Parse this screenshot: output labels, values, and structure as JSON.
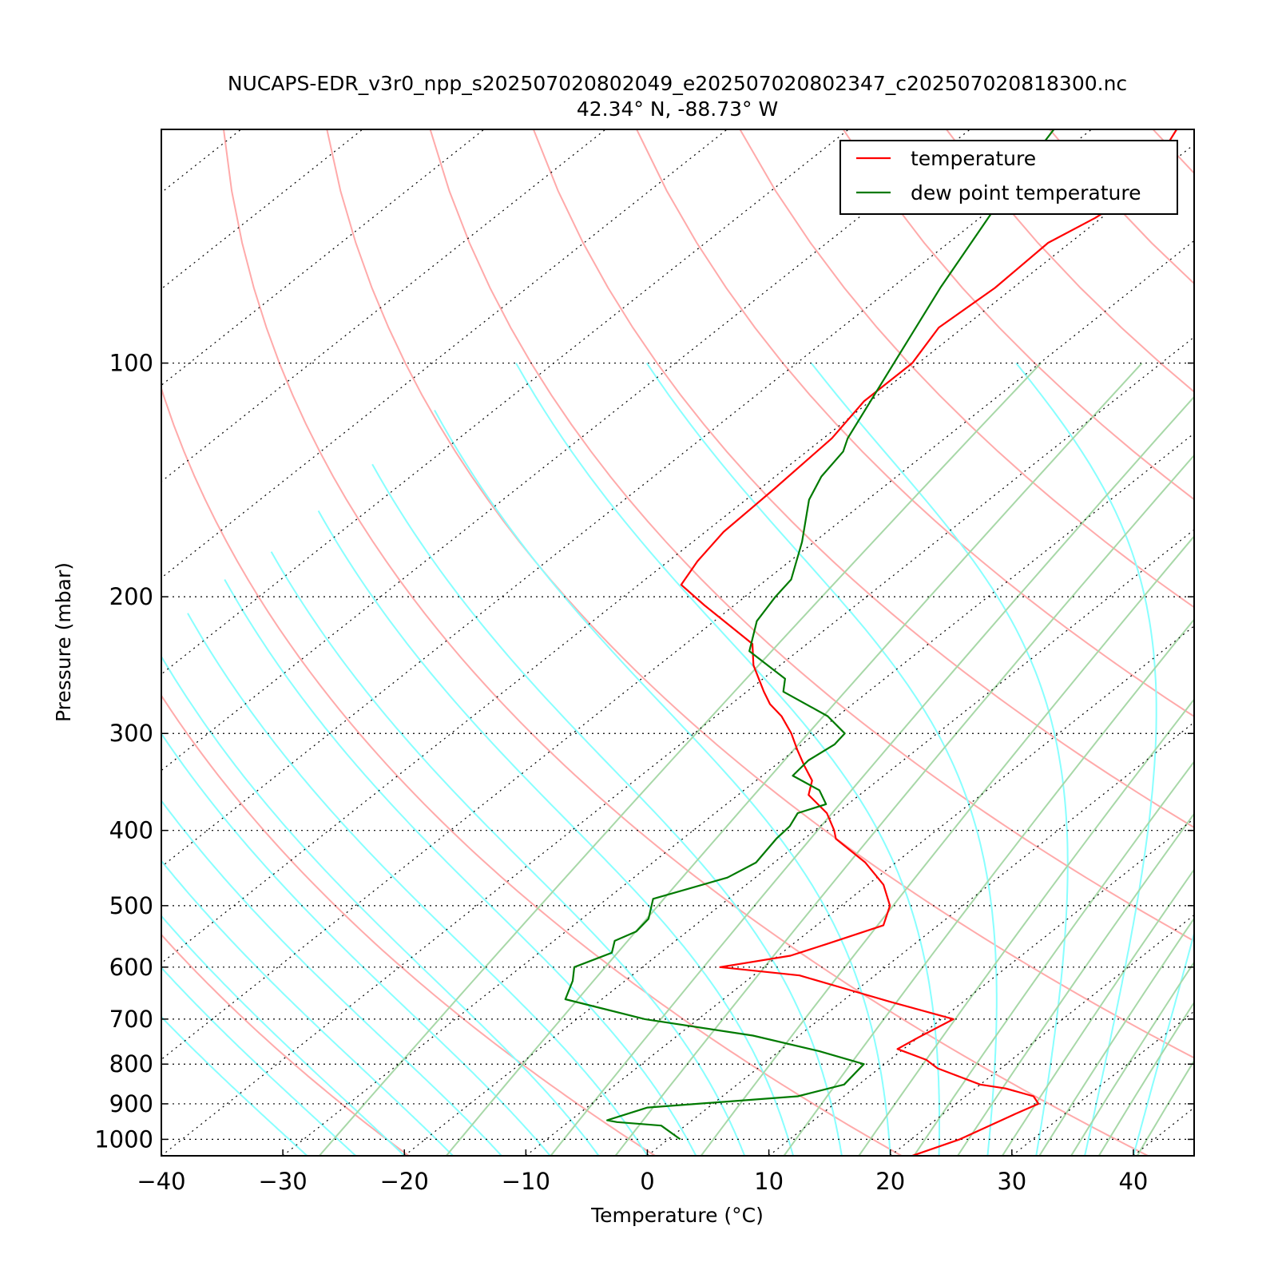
{
  "chart_data": {
    "type": "line",
    "title": "NUCAPS-EDR_v3r0_npp_s202507020802049_e202507020802347_c202507020818300.nc",
    "subtitle": "42.34° N, -88.73° W",
    "xlabel": "Temperature (°C)",
    "ylabel": "Pressure (mbar)",
    "xlim": [
      -40,
      45
    ],
    "ylim": [
      1050,
      50
    ],
    "y_scale": "log",
    "skew": true,
    "grid": true,
    "legend_position": "top-right",
    "x_ticks": [
      "−40",
      "−30",
      "−20",
      "−10",
      "0",
      "10",
      "20",
      "30",
      "40"
    ],
    "x_tick_values": [
      -40,
      -30,
      -20,
      -10,
      0,
      10,
      20,
      30,
      40
    ],
    "y_ticks": [
      "100",
      "200",
      "300",
      "400",
      "500",
      "600",
      "700",
      "800",
      "900",
      "1000"
    ],
    "y_tick_values": [
      100,
      200,
      300,
      400,
      500,
      600,
      700,
      800,
      900,
      1000
    ],
    "series": [
      {
        "name": "temperature",
        "color": "#ff0000",
        "points": [
          [
            1050,
            21.8
          ],
          [
            1000,
            24.0
          ],
          [
            925,
            26.0
          ],
          [
            900,
            26.8
          ],
          [
            880,
            25.6
          ],
          [
            860,
            22.5
          ],
          [
            850,
            20.0
          ],
          [
            810,
            14.8
          ],
          [
            790,
            13.0
          ],
          [
            765,
            9.5
          ],
          [
            740,
            10.0
          ],
          [
            700,
            11.0
          ],
          [
            665,
            4.0
          ],
          [
            640,
            -1.0
          ],
          [
            615,
            -6.2
          ],
          [
            600,
            -13.6
          ],
          [
            580,
            -9.0
          ],
          [
            560,
            -7.2
          ],
          [
            530,
            -4.5
          ],
          [
            500,
            -6.0
          ],
          [
            470,
            -8.7
          ],
          [
            440,
            -12.5
          ],
          [
            410,
            -17.4
          ],
          [
            400,
            -18.4
          ],
          [
            380,
            -20.8
          ],
          [
            360,
            -24.2
          ],
          [
            345,
            -25.4
          ],
          [
            330,
            -27.6
          ],
          [
            315,
            -29.8
          ],
          [
            300,
            -32.0
          ],
          [
            285,
            -34.6
          ],
          [
            275,
            -36.8
          ],
          [
            265,
            -38.6
          ],
          [
            245,
            -42.2
          ],
          [
            230,
            -44.5
          ],
          [
            205,
            -52.5
          ],
          [
            193,
            -56.5
          ],
          [
            180,
            -57.6
          ],
          [
            165,
            -58.5
          ],
          [
            145,
            -58.8
          ],
          [
            125,
            -59.3
          ],
          [
            112,
            -60.5
          ],
          [
            100,
            -60.5
          ],
          [
            90,
            -62.0
          ],
          [
            80,
            -61.5
          ],
          [
            70,
            -61.8
          ],
          [
            65,
            -60.5
          ],
          [
            60,
            -59.8
          ],
          [
            55,
            -61.3
          ],
          [
            50,
            -63.0
          ]
        ]
      },
      {
        "name": "dew point temperature",
        "color": "#008000",
        "points": [
          [
            1000,
            1.0
          ],
          [
            960,
            -2.0
          ],
          [
            950,
            -6.0
          ],
          [
            945,
            -7.0
          ],
          [
            910,
            -5.0
          ],
          [
            880,
            6.2
          ],
          [
            850,
            8.8
          ],
          [
            800,
            8.3
          ],
          [
            770,
            3.3
          ],
          [
            735,
            -3.8
          ],
          [
            700,
            -14.4
          ],
          [
            660,
            -23.0
          ],
          [
            625,
            -24.3
          ],
          [
            600,
            -25.6
          ],
          [
            575,
            -24.0
          ],
          [
            555,
            -25.0
          ],
          [
            540,
            -24.2
          ],
          [
            520,
            -24.5
          ],
          [
            490,
            -26.2
          ],
          [
            460,
            -22.3
          ],
          [
            440,
            -21.5
          ],
          [
            410,
            -22.3
          ],
          [
            395,
            -22.5
          ],
          [
            380,
            -23.2
          ],
          [
            370,
            -21.8
          ],
          [
            355,
            -23.8
          ],
          [
            340,
            -27.5
          ],
          [
            325,
            -27.8
          ],
          [
            310,
            -27.3
          ],
          [
            300,
            -27.6
          ],
          [
            285,
            -30.8
          ],
          [
            265,
            -37.0
          ],
          [
            255,
            -38.2
          ],
          [
            235,
            -44.0
          ],
          [
            215,
            -46.5
          ],
          [
            200,
            -47.5
          ],
          [
            190,
            -48.0
          ],
          [
            170,
            -51.0
          ],
          [
            150,
            -54.8
          ],
          [
            140,
            -56.2
          ],
          [
            130,
            -57.0
          ],
          [
            125,
            -58.0
          ],
          [
            100,
            -62.0
          ],
          [
            80,
            -66.0
          ],
          [
            60,
            -70.6
          ],
          [
            50,
            -73.1
          ]
        ]
      }
    ]
  }
}
